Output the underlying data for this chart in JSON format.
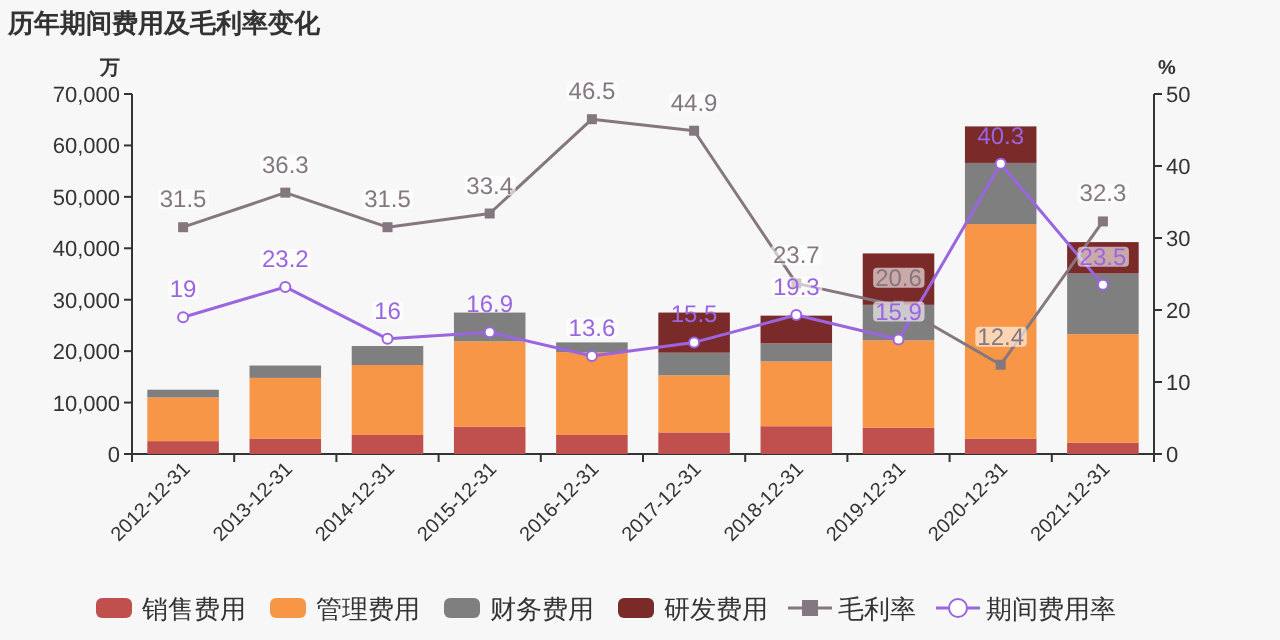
{
  "chart_data": {
    "type": "bar",
    "title": "历年期间费用及毛利率变化",
    "ylabel": "万",
    "y2label": "%",
    "stacked": true,
    "legend": "bottom",
    "grid": false,
    "categories": [
      "2012-12-31",
      "2013-12-31",
      "2014-12-31",
      "2015-12-31",
      "2016-12-31",
      "2017-12-31",
      "2018-12-31",
      "2019-12-31",
      "2020-12-31",
      "2021-12-31"
    ],
    "ylim": [
      0,
      70000
    ],
    "yticks": [
      0,
      {
        "value": 10000,
        "label": "10,000"
      },
      {
        "value": 20000,
        "label": "20,000"
      },
      {
        "value": 30000,
        "label": "30,000"
      },
      {
        "value": 40000,
        "label": "40,000"
      },
      {
        "value": 50000,
        "label": "50,000"
      },
      {
        "value": 60000,
        "label": "60,000"
      },
      {
        "value": 70000,
        "label": "70,000"
      }
    ],
    "y2lim": [
      0,
      50
    ],
    "y2ticks": [
      0,
      10,
      20,
      30,
      40,
      50
    ],
    "series": [
      {
        "name": "销售费用",
        "color": "#c0504d",
        "values": [
          2500,
          3000,
          3700,
          5300,
          3700,
          4200,
          5400,
          5100,
          3000,
          2200
        ]
      },
      {
        "name": "管理费用",
        "color": "#f79646",
        "values": [
          8500,
          11800,
          13600,
          16600,
          16100,
          11100,
          12600,
          17000,
          41700,
          21100
        ]
      },
      {
        "name": "财务费用",
        "color": "#7f7f7f",
        "values": [
          1500,
          2400,
          3700,
          5600,
          1900,
          4400,
          3500,
          6900,
          11900,
          11800
        ]
      },
      {
        "name": "研发费用",
        "color": "#7b2a2a",
        "values": [
          0,
          0,
          0,
          0,
          0,
          7800,
          5400,
          10000,
          7100,
          6100
        ]
      },
      {
        "name": "毛利率",
        "type": "line",
        "axis": "y2",
        "marker": "square",
        "color": "#85777f",
        "values": [
          31.5,
          36.3,
          31.5,
          33.4,
          46.5,
          44.9,
          23.7,
          20.6,
          12.4,
          32.3
        ],
        "value_labels": [
          "31.5",
          "36.3",
          "31.5",
          "33.4",
          "46.5",
          "44.9",
          "23.7",
          "20.6",
          "12.4",
          "32.3"
        ]
      },
      {
        "name": "期间费用率",
        "type": "line",
        "axis": "y2",
        "marker": "circle",
        "color": "#9a66e0",
        "values": [
          19,
          23.2,
          16,
          16.9,
          13.6,
          15.5,
          19.3,
          15.9,
          40.3,
          23.5
        ],
        "value_labels": [
          "19",
          "23.2",
          "16",
          "16.9",
          "13.6",
          "15.5",
          "19.3",
          "15.9",
          "40.3",
          "23.5"
        ]
      }
    ]
  }
}
